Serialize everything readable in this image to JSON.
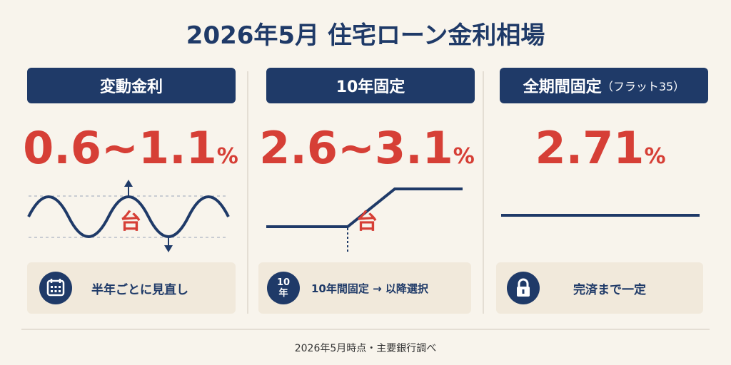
{
  "title": "2026年5月 住宅ローン金利相場",
  "columns": [
    {
      "header": "変動金利",
      "rate": "0.6~1.1",
      "suffix": "%台",
      "badge": {
        "text": "半年ごとに見直し"
      }
    },
    {
      "header": "10年固定",
      "rate": "2.6~3.1",
      "suffix": "%台",
      "badge": {
        "icon": "10年",
        "text": "10年間固定 → 以降選択"
      }
    },
    {
      "header": "全期間固定",
      "header_note": "（フラット35）",
      "rate": "2.71",
      "suffix": "%",
      "badge": {
        "text": "完済まで一定"
      }
    }
  ],
  "footnote": "2026年5月時点・主要銀行調べ"
}
